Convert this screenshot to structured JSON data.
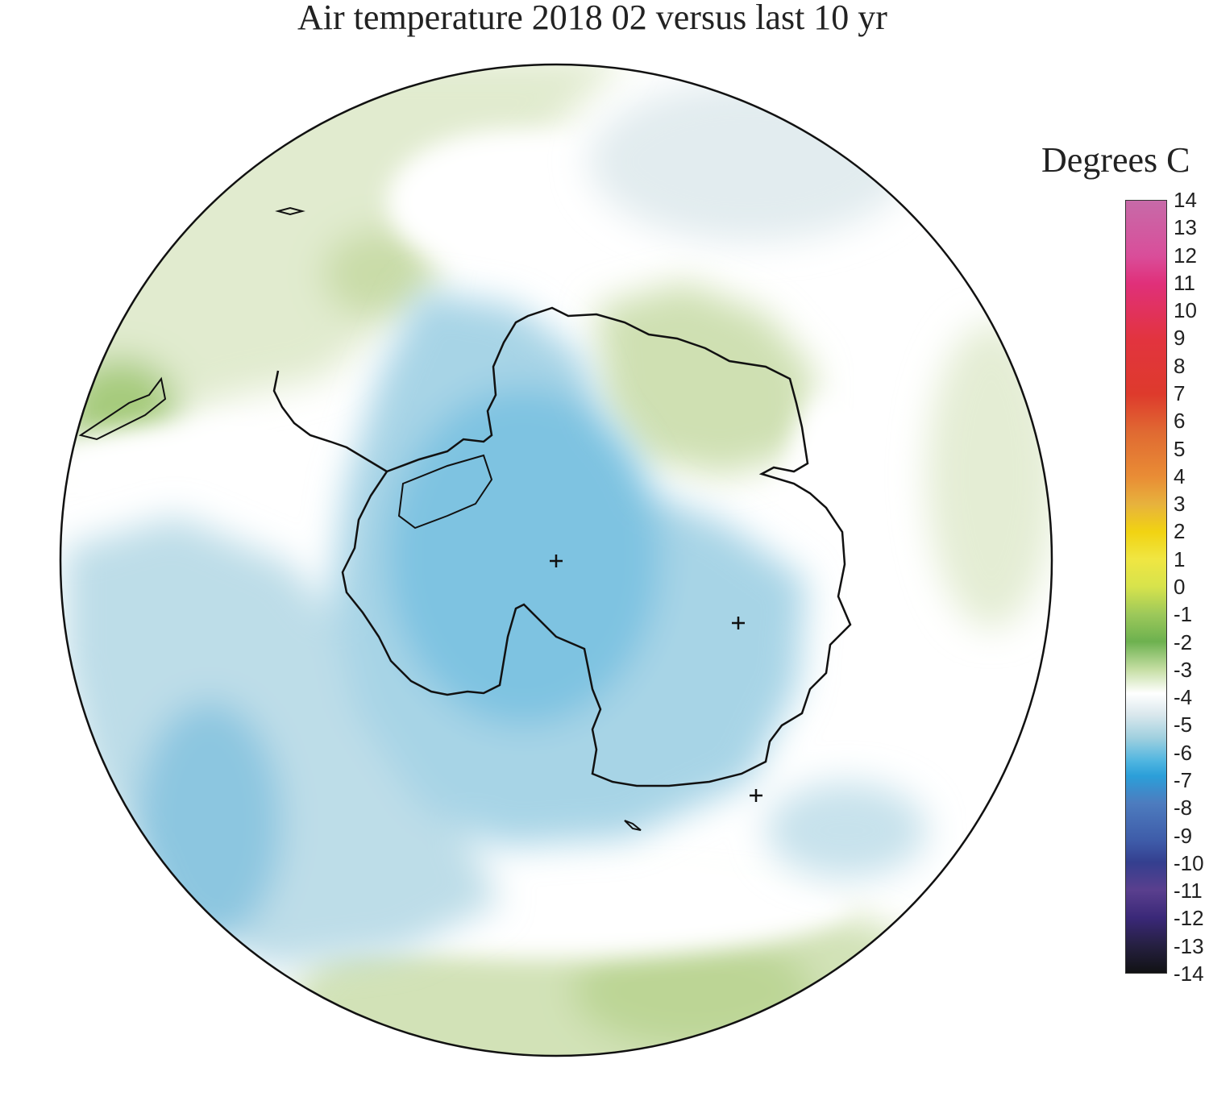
{
  "title": "Air temperature 2018 02 versus last 10 yr",
  "colorbar": {
    "title": "Degrees C",
    "ticks": [
      "14",
      "13",
      "12",
      "11",
      "10",
      "9",
      "8",
      "7",
      "6",
      "5",
      "4",
      "3",
      "2",
      "1",
      "0",
      "-1",
      "-2",
      "-3",
      "-4",
      "-5",
      "-6",
      "-7",
      "-8",
      "-9",
      "-10",
      "-11",
      "-12",
      "-13",
      "-14"
    ],
    "range": [
      -14,
      14
    ]
  },
  "map": {
    "projection": "south-polar-stereographic",
    "region": "Antarctica",
    "markers": [
      "+",
      "+",
      "+"
    ]
  }
}
